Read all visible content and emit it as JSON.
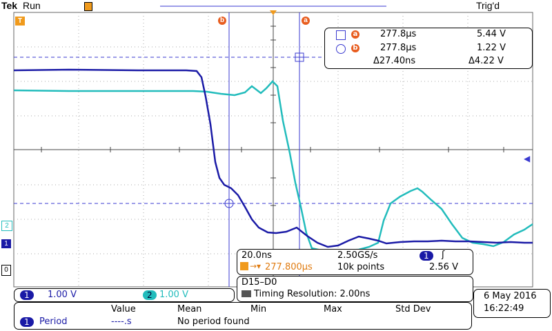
{
  "status": {
    "brand": "Tek",
    "run": "Run",
    "trigger": "Trig'd"
  },
  "cursors": {
    "a": {
      "label": "a",
      "time": "277.8µs",
      "volt": "5.44 V"
    },
    "b": {
      "label": "b",
      "time": "277.8µs",
      "volt": "1.22 V"
    },
    "delta": {
      "time": "Δ27.40ns",
      "volt": "Δ4.22 V"
    }
  },
  "horizontal": {
    "scale": "20.0ns",
    "rate": "2.50GS/s",
    "position": "277.800µs",
    "points": "10k points",
    "trigger_channel": "1",
    "trigger_level": "2.56 V"
  },
  "digital": {
    "bus": "D15–D0",
    "timing": "Timing Resolution: 2.00ns"
  },
  "channels": [
    {
      "id": "1",
      "scale": "1.00 V",
      "color": "#1a1aa6"
    },
    {
      "id": "2",
      "scale": "1.00 V",
      "color": "#22bcbc"
    }
  ],
  "measure": {
    "headers": [
      "Value",
      "Mean",
      "Min",
      "Max",
      "Std Dev"
    ],
    "row": {
      "channel": "1",
      "name": "Period",
      "value": "----.s",
      "note": "No period found"
    }
  },
  "datetime": {
    "date": "6 May 2016",
    "time": "16:22:49"
  },
  "markers": {
    "ch1": "1",
    "ch2": "2",
    "zero": "0",
    "trigger": "T"
  }
}
